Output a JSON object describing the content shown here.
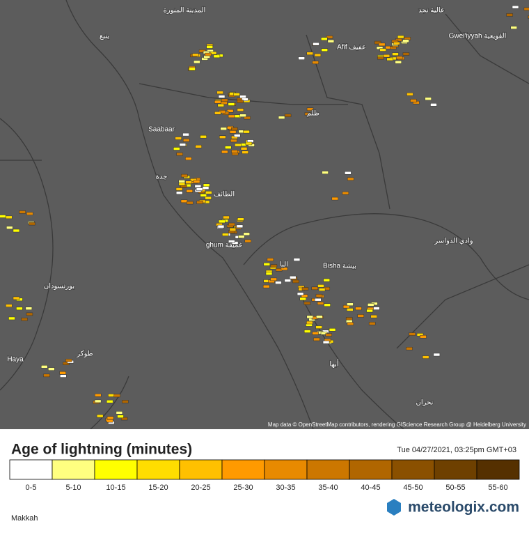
{
  "map": {
    "labels": [
      "المدينة المنورة",
      "ينبع",
      "Saabaar",
      "جدة",
      "الطائف",
      "ghum غميقة",
      "Bisha بيشة",
      "بورتسودان",
      "Haya",
      "طوكر",
      "أبها",
      "نجران",
      "وادي الدواسر",
      "Gwei'iyyah القويعية",
      "ظلم",
      "Afif عفيف",
      "عالية نجد",
      "البا"
    ],
    "attribution": "Map data © OpenStreetMap contributors, rendering GIScience Research Group @ Heidelberg University"
  },
  "legend": {
    "title": "Age of lightning (minutes)",
    "timestamp": "Tue 04/27/2021, 03:25pm GMT+03",
    "items": [
      {
        "label": "0-5",
        "color": "#ffffff"
      },
      {
        "label": "5-10",
        "color": "#ffff80"
      },
      {
        "label": "10-15",
        "color": "#ffff00"
      },
      {
        "label": "15-20",
        "color": "#ffdd00"
      },
      {
        "label": "20-25",
        "color": "#ffc000"
      },
      {
        "label": "25-30",
        "color": "#ff9a00"
      },
      {
        "label": "30-35",
        "color": "#e88a00"
      },
      {
        "label": "35-40",
        "color": "#cc7700"
      },
      {
        "label": "40-45",
        "color": "#b06600"
      },
      {
        "label": "45-50",
        "color": "#8a5000"
      },
      {
        "label": "50-55",
        "color": "#6e4000"
      },
      {
        "label": "55-60",
        "color": "#553000"
      }
    ]
  },
  "footer": {
    "location": "Makkah",
    "brand": "meteologix.com"
  }
}
